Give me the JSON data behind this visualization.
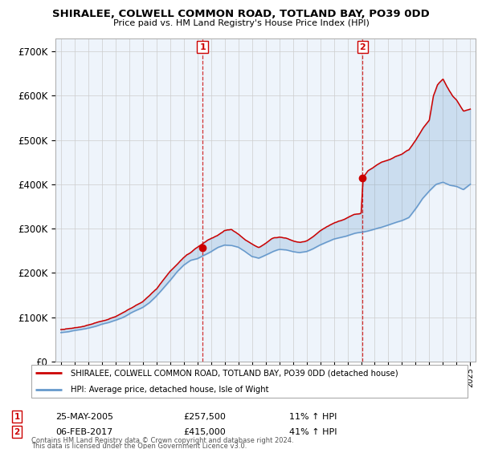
{
  "title": "SHIRALEE, COLWELL COMMON ROAD, TOTLAND BAY, PO39 0DD",
  "subtitle": "Price paid vs. HM Land Registry's House Price Index (HPI)",
  "legend_line1": "SHIRALEE, COLWELL COMMON ROAD, TOTLAND BAY, PO39 0DD (detached house)",
  "legend_line2": "HPI: Average price, detached house, Isle of Wight",
  "footer1": "Contains HM Land Registry data © Crown copyright and database right 2024.",
  "footer2": "This data is licensed under the Open Government Licence v3.0.",
  "transaction1_date": "25-MAY-2005",
  "transaction1_price": "£257,500",
  "transaction1_hpi": "11% ↑ HPI",
  "transaction2_date": "06-FEB-2017",
  "transaction2_price": "£415,000",
  "transaction2_hpi": "41% ↑ HPI",
  "price_color": "#cc0000",
  "hpi_color": "#6699cc",
  "fill_color": "#d0e4f5",
  "grid_color": "#cccccc",
  "bg_color": "#ffffff",
  "plot_bg_color": "#eef4fb",
  "transaction1_x": 2005.38,
  "transaction1_y": 257500,
  "transaction2_x": 2017.1,
  "transaction2_y": 415000,
  "ylim": [
    0,
    730000
  ],
  "yticks": [
    0,
    100000,
    200000,
    300000,
    400000,
    500000,
    600000,
    700000
  ],
  "ytick_labels": [
    "£0",
    "£100K",
    "£200K",
    "£300K",
    "£400K",
    "£500K",
    "£600K",
    "£700K"
  ],
  "xlim_min": 1994.6,
  "xlim_max": 2025.4
}
